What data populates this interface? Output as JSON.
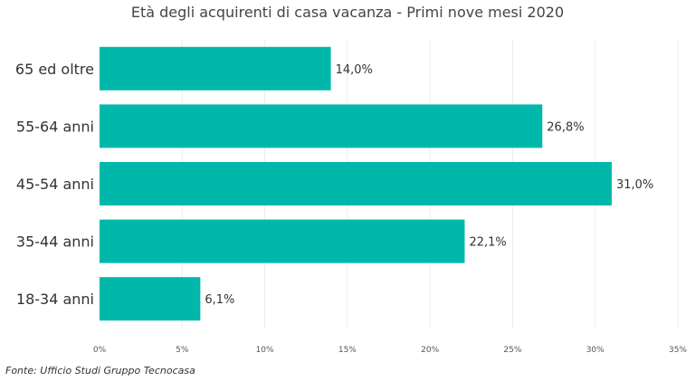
{
  "source": "Fonte: Ufficio Studi Gruppo Tecnocasa",
  "colors": {
    "bar": "#00b8a9",
    "grid": "#ececec",
    "text": "#333333"
  },
  "chart_data": {
    "type": "bar",
    "orientation": "horizontal",
    "title": "Età degli acquirenti di casa vacanza  - Primi nove mesi  2020",
    "categories": [
      "65 ed oltre",
      "55-64 anni",
      "45-54 anni",
      "35-44 anni",
      "18-34 anni"
    ],
    "values": [
      14.0,
      26.8,
      31.0,
      22.1,
      6.1
    ],
    "data_labels": [
      "14,0%",
      "26,8%",
      "31,0%",
      "22,1%",
      "6,1%"
    ],
    "xlim": [
      0,
      35
    ],
    "xticks": [
      0,
      5,
      10,
      15,
      20,
      25,
      30,
      35
    ],
    "xtick_labels": [
      "0%",
      "5%",
      "10%",
      "15%",
      "20%",
      "25%",
      "30%",
      "35%"
    ],
    "grid": true,
    "legend": "none"
  }
}
